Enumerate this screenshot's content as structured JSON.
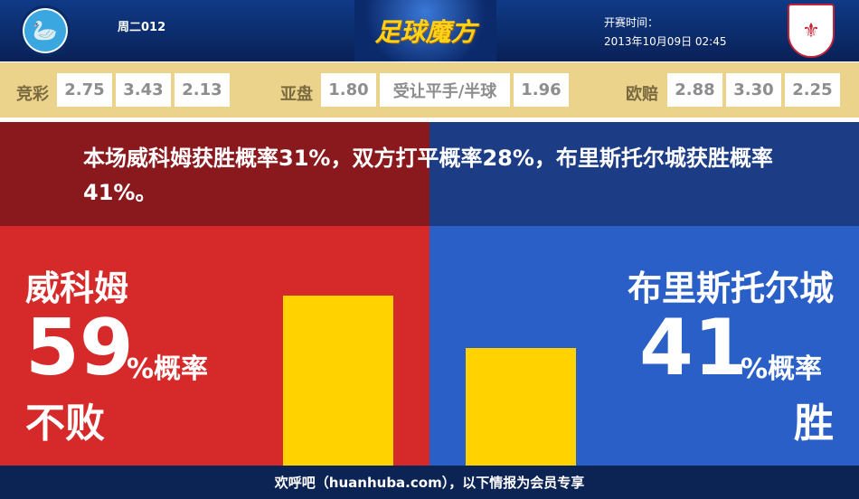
{
  "header": {
    "match_no": "周二012",
    "brand": "足球魔方",
    "kickoff_label": "开赛时间：",
    "kickoff_time": "2013年10月09日 02:45",
    "home_logo": "wycombe-wanderers-crest",
    "away_logo": "bristol-city-crest"
  },
  "odds": {
    "jingcai": {
      "label": "竞彩",
      "values": [
        "2.75",
        "3.43",
        "2.13"
      ]
    },
    "asian": {
      "label": "亚盘",
      "home": "1.80",
      "handicap": "受让平手/半球",
      "away": "1.96"
    },
    "europe": {
      "label": "欧赔",
      "values": [
        "2.88",
        "3.30",
        "2.25"
      ]
    }
  },
  "summary": "本场威科姆获胜概率31%，双方打平概率28%，布里斯托尔城获胜概率41%。",
  "home": {
    "name": "威科姆",
    "percent": "59",
    "percent_suffix": "%概率",
    "outcome": "不败",
    "value": 59,
    "color": "#d62a2a"
  },
  "away": {
    "name": "布里斯托尔城",
    "percent": "41",
    "percent_suffix": "%概率",
    "outcome": "胜",
    "value": 41,
    "color": "#2a5fc8"
  },
  "footer": "欢呼吧（huanhuba.com），以下情报为会员专享"
}
